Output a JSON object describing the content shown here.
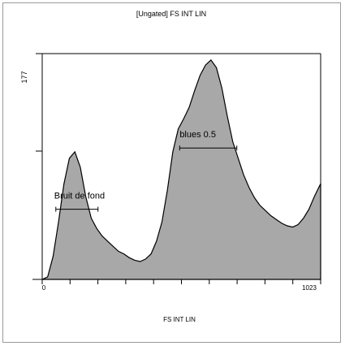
{
  "chart_data": {
    "type": "area",
    "title": "[Ungated] FS INT LIN",
    "xlabel": "FS INT LIN",
    "ylabel": "",
    "xlim": [
      0,
      1023
    ],
    "ylim": [
      0,
      177
    ],
    "x_tick_labels": [
      "0",
      "1023"
    ],
    "y_tick_labels": [
      "177"
    ],
    "fill_color": "#a8a8a8",
    "line_color": "#000000",
    "grid": false,
    "series": [
      {
        "x": [
          0,
          20,
          40,
          60,
          80,
          100,
          120,
          140,
          160,
          180,
          200,
          220,
          240,
          260,
          280,
          300,
          320,
          340,
          360,
          380,
          400,
          420,
          440,
          460,
          480,
          500,
          520,
          540,
          560,
          580,
          600,
          620,
          640,
          660,
          680,
          700,
          720,
          740,
          760,
          780,
          800,
          820,
          840,
          860,
          880,
          900,
          920,
          940,
          960,
          980,
          1000,
          1023
        ],
        "values": [
          0,
          2,
          18,
          45,
          75,
          95,
          100,
          88,
          65,
          48,
          40,
          34,
          30,
          26,
          22,
          20,
          17,
          15,
          14,
          16,
          20,
          30,
          45,
          70,
          100,
          118,
          126,
          135,
          148,
          160,
          168,
          172,
          166,
          150,
          128,
          108,
          95,
          82,
          72,
          64,
          58,
          54,
          50,
          47,
          44,
          42,
          41,
          43,
          48,
          55,
          65,
          75
        ]
      }
    ],
    "markers": [
      {
        "label": "Bruit de fond",
        "x1": 50,
        "x2": 205,
        "y": 55
      },
      {
        "label": "blues 0.5",
        "x1": 505,
        "x2": 715,
        "y": 103
      }
    ]
  }
}
